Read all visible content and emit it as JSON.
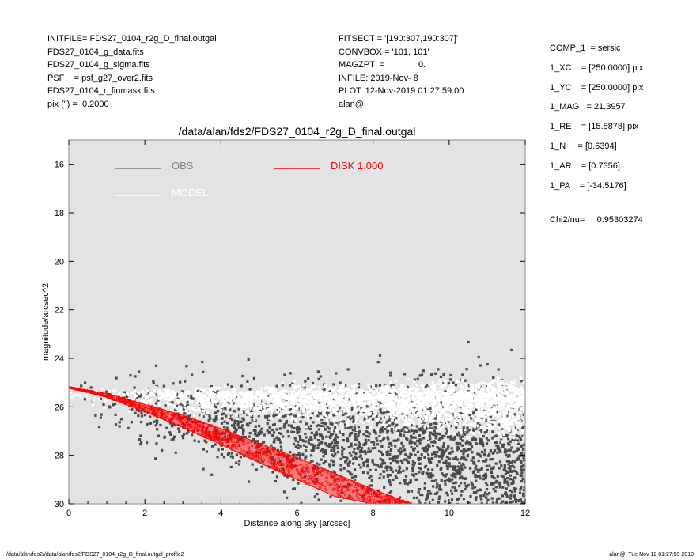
{
  "header_left": [
    "INITFILE= FDS27_0104_r2g_D_final.outgal",
    "FDS27_0104_g_data.fits",
    "FDS27_0104_g_sigma.fits",
    "PSF    = psf_g27_over2.fits",
    "FDS27_0104_r_finmask.fits",
    "pix (\") =  0.2000"
  ],
  "header_mid": [
    "FITSECT = '[190:307,190:307]'",
    "CONVBOX = '101, 101'",
    "MAGZPT  =              0.",
    "INFILE: 2019-Nov- 8",
    "PLOT: 12-Nov-2019 01:27:59.00",
    "alan@"
  ],
  "header_right": [
    "COMP_1  = sersic",
    "1_XC    = [250.0000] pix",
    "1_YC    = [250.0000] pix",
    "1_MAG   = 21.3957",
    "1_RE    = [15.5878] pix",
    "1_N     = [0.6394]",
    "1_AR    = [0.7356]",
    "1_PA    = [-34.5176]"
  ],
  "chi": "Chi2/nu=     0.95303274",
  "footer_left": "/data/alan/fds2//data/alan/fds2/FDS27_0104_r2g_D_final.outgal_profile2",
  "footer_right": "alan@  Tue Nov 12 01:27:59 2019",
  "chart_data": {
    "type": "scatter",
    "title": "/data/alan/fds2/FDS27_0104_r2g_D_final.outgal",
    "xlabel": "Distance along sky [arcsec]",
    "ylabel": "magnitude/arcsec^2",
    "xlim": [
      0,
      12
    ],
    "ylim": [
      30,
      15
    ],
    "y_inverted": true,
    "xticks": [
      0,
      2,
      4,
      6,
      8,
      10,
      12
    ],
    "yticks": [
      16,
      18,
      20,
      22,
      24,
      26,
      28,
      30
    ],
    "background": "#e3e3e3",
    "legend": [
      {
        "label": "OBS",
        "color": "#808080"
      },
      {
        "label": "MODEL",
        "color": "#ffffff"
      },
      {
        "label": "DISK  1.000",
        "color": "#ff0000"
      }
    ],
    "series": [
      {
        "name": "OBS",
        "color": "#4a4a4a",
        "kind": "points",
        "mag_at_0": 25.2,
        "slope": 0.22,
        "scatter": 1.3
      },
      {
        "name": "MODEL",
        "color": "#ffffff",
        "kind": "points",
        "mag_at_0": 25.2,
        "slope": 0.02,
        "scatter": 0.55
      },
      {
        "name": "DISK  1.000",
        "color": "#ff0000",
        "kind": "band",
        "upper": {
          "x": [
            0,
            1,
            2,
            3,
            4,
            5,
            6,
            7,
            8,
            9
          ],
          "y": [
            25.2,
            25.45,
            25.9,
            26.35,
            26.9,
            27.5,
            28.1,
            28.75,
            29.4,
            30.0
          ]
        },
        "lower": {
          "x": [
            0,
            1,
            2,
            3,
            4,
            5,
            6,
            7,
            8,
            9
          ],
          "y": [
            25.2,
            25.6,
            26.2,
            26.85,
            27.55,
            28.3,
            29.0,
            29.7,
            30.0,
            30.0
          ]
        }
      }
    ]
  }
}
